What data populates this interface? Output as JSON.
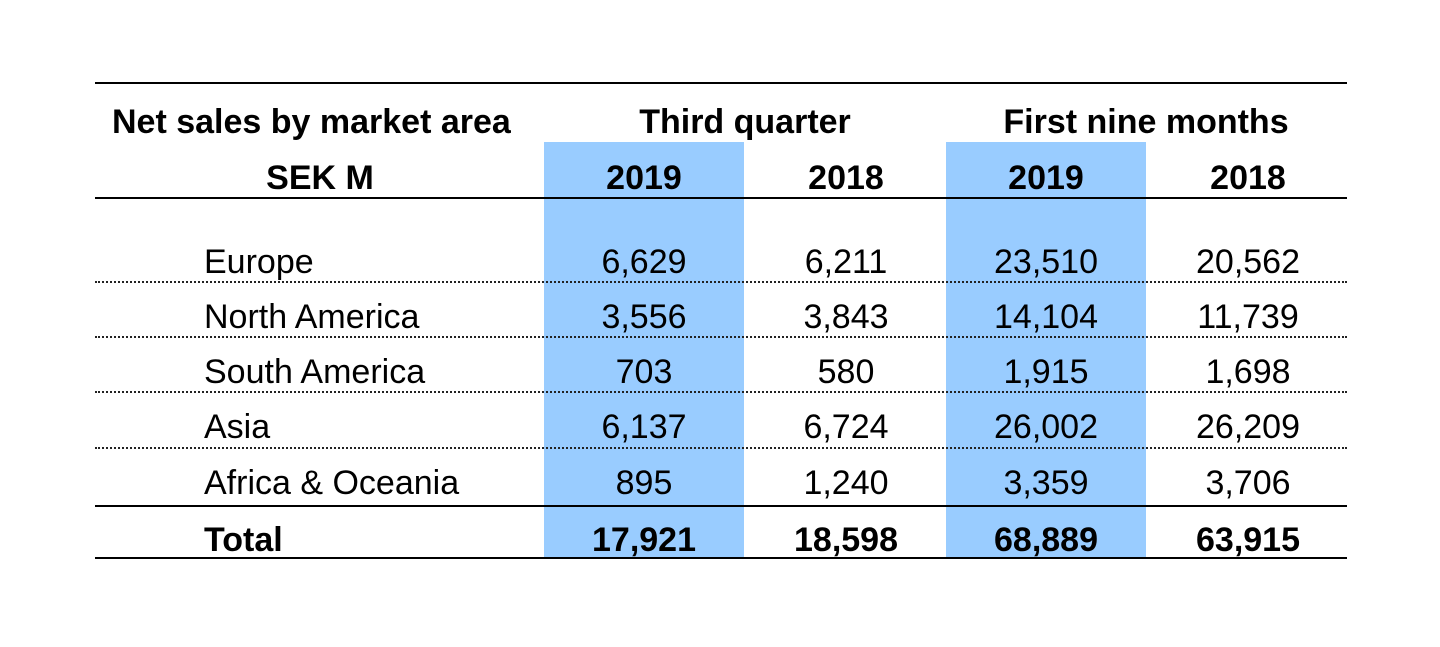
{
  "header": {
    "title": "Net sales by market area",
    "unit": "SEK M",
    "group_quarter": "Third quarter",
    "group_nine_months": "First nine months",
    "years": [
      "2019",
      "2018",
      "2019",
      "2018"
    ]
  },
  "rows": [
    {
      "label": "Europe",
      "values": [
        "6,629",
        "6,211",
        "23,510",
        "20,562"
      ]
    },
    {
      "label": "North America",
      "values": [
        "3,556",
        "3,843",
        "14,104",
        "11,739"
      ]
    },
    {
      "label": "South America",
      "values": [
        "703",
        "580",
        "1,915",
        "1,698"
      ]
    },
    {
      "label": "Asia",
      "values": [
        "6,137",
        "6,724",
        "26,002",
        "26,209"
      ]
    },
    {
      "label": "Africa & Oceania",
      "values": [
        "895",
        "1,240",
        "3,359",
        "3,706"
      ]
    }
  ],
  "total": {
    "label": "Total",
    "values": [
      "17,921",
      "18,598",
      "68,889",
      "63,915"
    ]
  },
  "colors": {
    "highlight": "#99ccff"
  }
}
